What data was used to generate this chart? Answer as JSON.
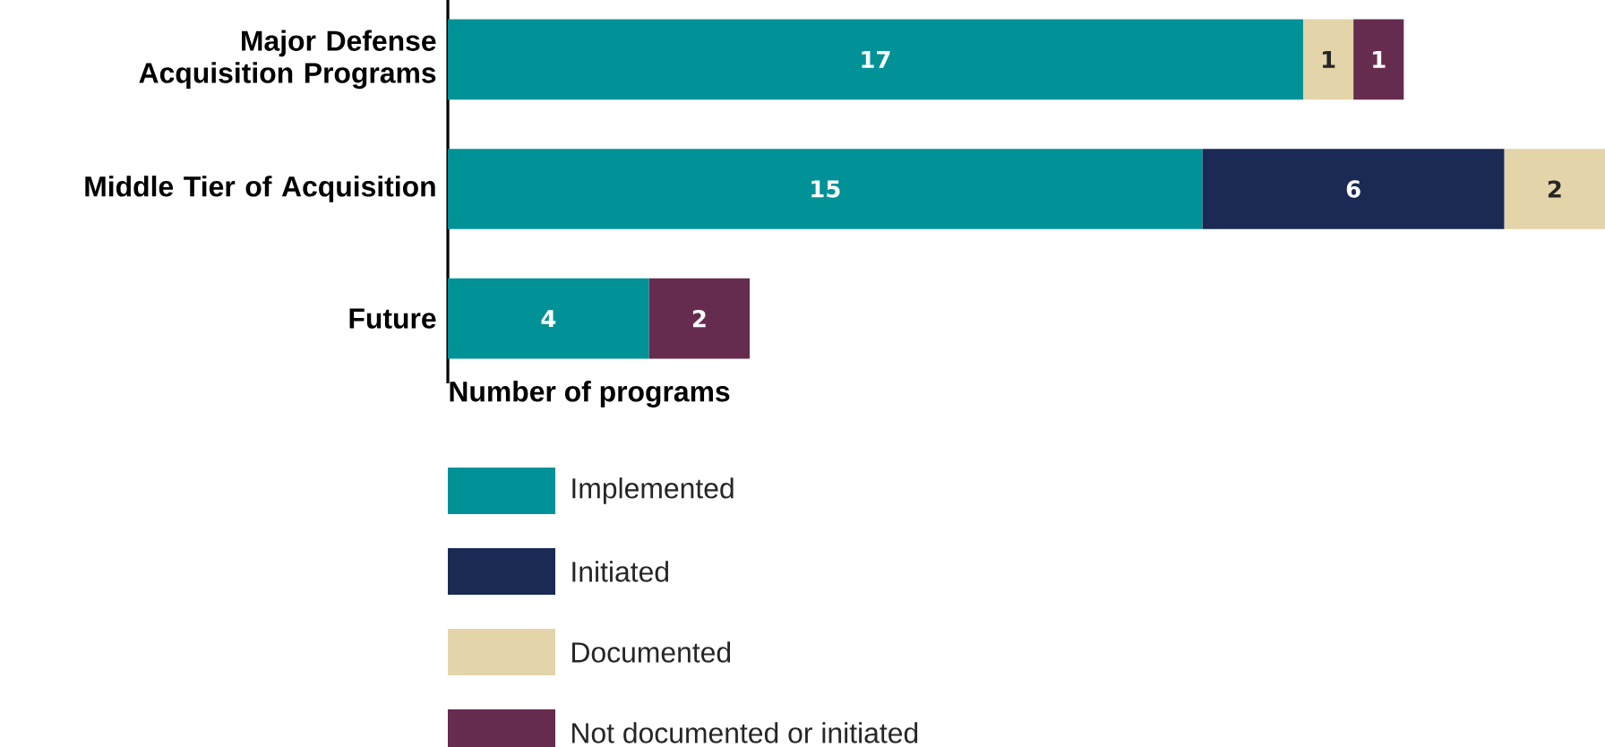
{
  "chart_data": {
    "type": "bar",
    "orientation": "horizontal",
    "stacked": true,
    "data_labels": true,
    "legend": "bottom",
    "xlabel": "Number of programs",
    "categories": [
      "Major Defense Acquisition Programs",
      "Middle Tier of Acquisition",
      "Future"
    ],
    "series": [
      {
        "name": "Implemented",
        "color": "#009297",
        "values": [
          17,
          15,
          4
        ]
      },
      {
        "name": "Initiated",
        "color": "#1a2a55",
        "values": [
          null,
          6,
          null
        ]
      },
      {
        "name": "Documented",
        "color": "#e3d4a9",
        "values": [
          1,
          2,
          null
        ]
      },
      {
        "name": "Not documented or initiated",
        "color": "#652c4f",
        "values": [
          1,
          null,
          2
        ]
      }
    ]
  }
}
